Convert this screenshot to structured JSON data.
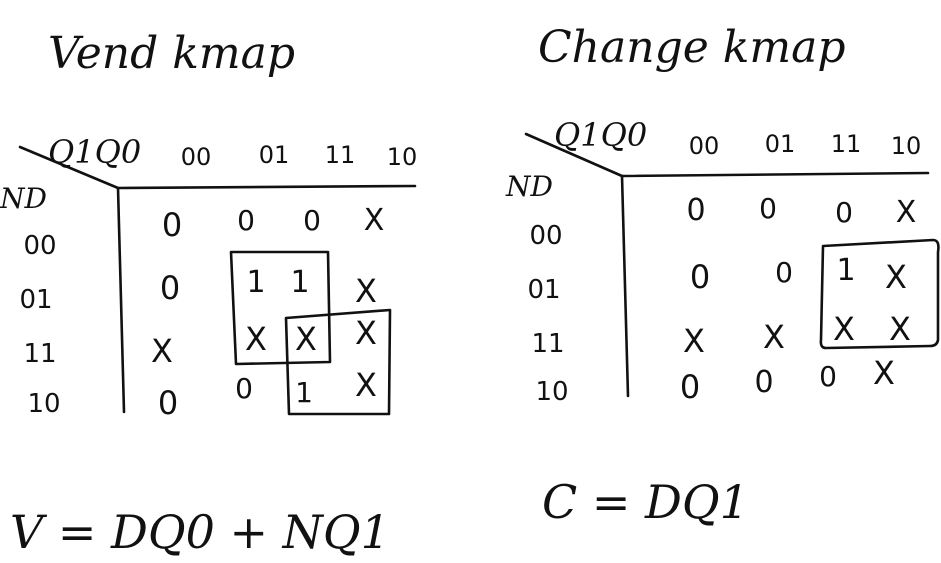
{
  "kmaps": [
    {
      "title": "Vend kmap",
      "col_var": "Q1Q0",
      "row_var": "ND",
      "col_labels": [
        "00",
        "01",
        "11",
        "10"
      ],
      "row_labels": [
        "00",
        "01",
        "11",
        "10"
      ],
      "cells": [
        [
          "0",
          "0",
          "0",
          "X"
        ],
        [
          "0",
          "1",
          "1",
          "X"
        ],
        [
          "X",
          "X",
          "X",
          "X"
        ],
        [
          "0",
          "0",
          "1",
          "X"
        ]
      ],
      "equation": "V = DQ0 + NQ1"
    },
    {
      "title": "Change kmap",
      "col_var": "Q1Q0",
      "row_var": "ND",
      "col_labels": [
        "00",
        "01",
        "11",
        "10"
      ],
      "row_labels": [
        "00",
        "01",
        "11",
        "10"
      ],
      "cells": [
        [
          "0",
          "0",
          "0",
          "X"
        ],
        [
          "0",
          "0",
          "1",
          "X"
        ],
        [
          "X",
          "X",
          "X",
          "X"
        ],
        [
          "0",
          "0",
          "0",
          "X"
        ]
      ],
      "equation": "C = DQ1"
    }
  ]
}
